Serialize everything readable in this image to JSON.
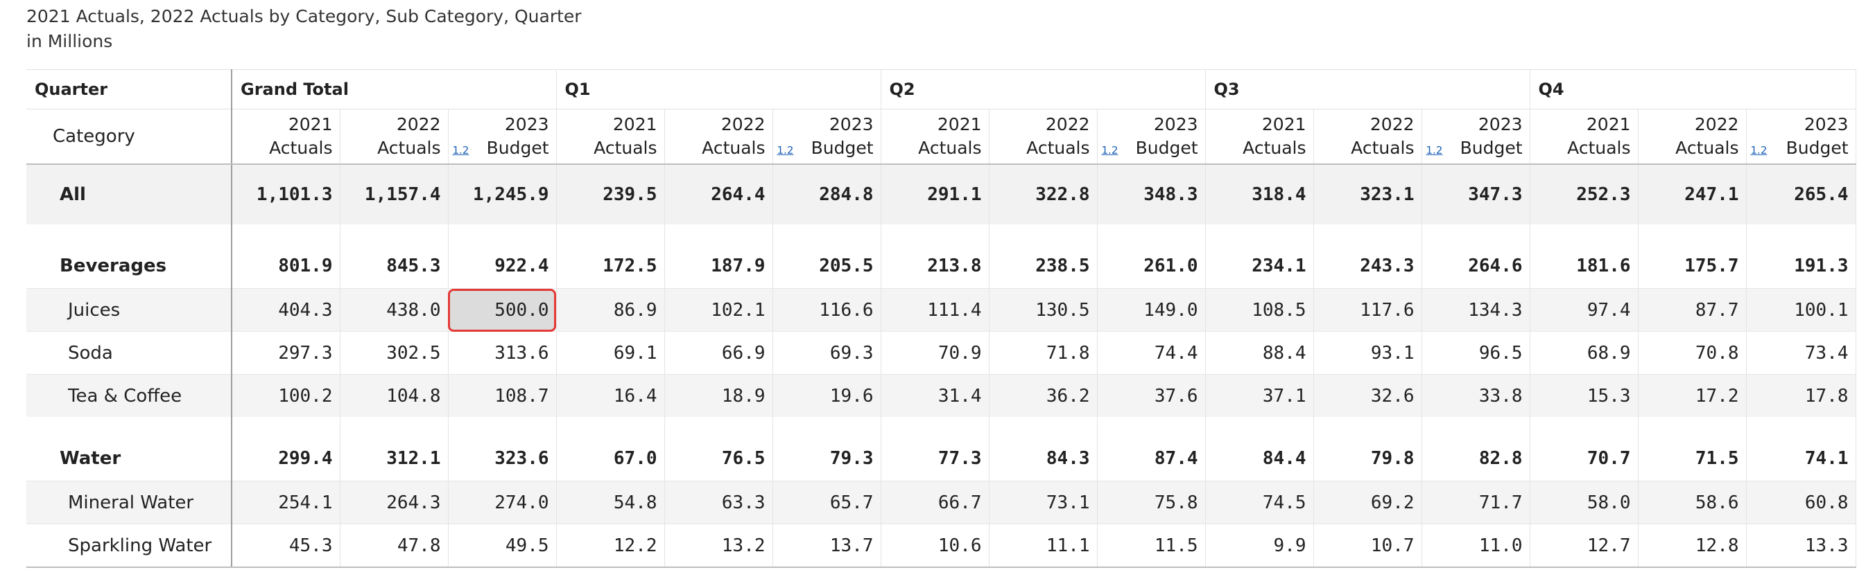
{
  "header": {
    "title_line1": "2021 Actuals, 2022 Actuals by Category, Sub Category, Quarter",
    "title_line2": "in Millions"
  },
  "columns": {
    "row_header": "Quarter",
    "row_field": "Category",
    "groups": [
      "Grand Total",
      "Q1",
      "Q2",
      "Q3",
      "Q4"
    ],
    "measures": [
      {
        "line1": "2021",
        "line2": "Actuals"
      },
      {
        "line1": "2022",
        "line2": "Actuals"
      },
      {
        "line1": "2023",
        "line2": "Budget"
      }
    ],
    "variance_link": "1.2"
  },
  "rows": [
    {
      "label": "All",
      "level": 0,
      "values": [
        "1,101.3",
        "1,157.4",
        "1,245.9",
        "239.5",
        "264.4",
        "284.8",
        "291.1",
        "322.8",
        "348.3",
        "318.4",
        "323.1",
        "347.3",
        "252.3",
        "247.1",
        "265.4"
      ]
    },
    {
      "label": "Beverages",
      "level": 1,
      "values": [
        "801.9",
        "845.3",
        "922.4",
        "172.5",
        "187.9",
        "205.5",
        "213.8",
        "238.5",
        "261.0",
        "234.1",
        "243.3",
        "264.6",
        "181.6",
        "175.7",
        "191.3"
      ]
    },
    {
      "label": "Juices",
      "level": 2,
      "values": [
        "404.3",
        "438.0",
        "500.0",
        "86.9",
        "102.1",
        "116.6",
        "111.4",
        "130.5",
        "149.0",
        "108.5",
        "117.6",
        "134.3",
        "97.4",
        "87.7",
        "100.1"
      ]
    },
    {
      "label": "Soda",
      "level": 2,
      "values": [
        "297.3",
        "302.5",
        "313.6",
        "69.1",
        "66.9",
        "69.3",
        "70.9",
        "71.8",
        "74.4",
        "88.4",
        "93.1",
        "96.5",
        "68.9",
        "70.8",
        "73.4"
      ]
    },
    {
      "label": "Tea & Coffee",
      "level": 2,
      "values": [
        "100.2",
        "104.8",
        "108.7",
        "16.4",
        "18.9",
        "19.6",
        "31.4",
        "36.2",
        "37.6",
        "37.1",
        "32.6",
        "33.8",
        "15.3",
        "17.2",
        "17.8"
      ]
    },
    {
      "label": "Water",
      "level": 1,
      "values": [
        "299.4",
        "312.1",
        "323.6",
        "67.0",
        "76.5",
        "79.3",
        "77.3",
        "84.3",
        "87.4",
        "84.4",
        "79.8",
        "82.8",
        "70.7",
        "71.5",
        "74.1"
      ]
    },
    {
      "label": "Mineral Water",
      "level": 2,
      "values": [
        "254.1",
        "264.3",
        "274.0",
        "54.8",
        "63.3",
        "65.7",
        "66.7",
        "73.1",
        "75.8",
        "74.5",
        "69.2",
        "71.7",
        "58.0",
        "58.6",
        "60.8"
      ]
    },
    {
      "label": "Sparkling Water",
      "level": 2,
      "values": [
        "45.3",
        "47.8",
        "49.5",
        "12.2",
        "13.2",
        "13.7",
        "10.6",
        "11.1",
        "11.5",
        "9.9",
        "10.7",
        "11.0",
        "12.7",
        "12.8",
        "13.3"
      ]
    }
  ],
  "selection": {
    "row": "Juices",
    "column_index": 2
  }
}
